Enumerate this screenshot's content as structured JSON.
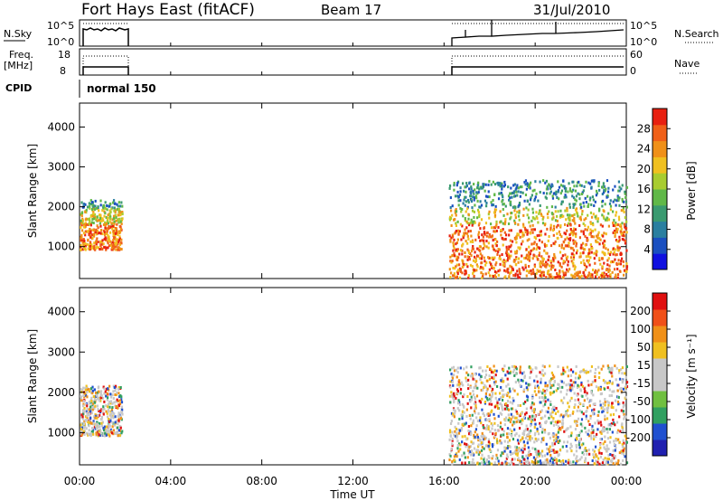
{
  "header": {
    "station": "Fort Hays East (fitACF)",
    "beam": "Beam 17",
    "date": "31/Jul/2010"
  },
  "strips": {
    "nsky_label": "N.Sky",
    "nsky_ticks": [
      "10^5",
      "10^0"
    ],
    "nsearch_label": "N.Search",
    "nsearch_ticks": [
      "10^5",
      "10^0"
    ],
    "freq_label": "Freq.",
    "freq_unit": "[MHz]",
    "freq_ticks": [
      "18",
      "8"
    ],
    "nave_label": "Nave",
    "nave_ticks": [
      "60",
      "0"
    ],
    "cpid_label": "CPID",
    "cpid_value": "normal 150"
  },
  "colors": {
    "power": [
      "#1010e0",
      "#1a4fc0",
      "#2a7fa0",
      "#3a9a70",
      "#60b848",
      "#a8cc30",
      "#f0c020",
      "#f09018",
      "#f06018",
      "#e82010"
    ],
    "velocity": [
      "#2020b0",
      "#2050d0",
      "#30a060",
      "#70c040",
      "#c8c8c8",
      "#c8c8c8",
      "#f0c020",
      "#f09018",
      "#f05018",
      "#e01010"
    ]
  },
  "chart_data": [
    {
      "type": "heatmap",
      "name": "power-panel",
      "ylabel": "Slant Range [km]",
      "yticks": [
        "4000",
        "3000",
        "2000",
        "1000"
      ],
      "ylim": [
        200,
        4600
      ],
      "xlim_hours": [
        0,
        24
      ],
      "colorbar_label": "Power [dB]",
      "colorbar_ticks": [
        "28",
        "24",
        "20",
        "16",
        "12",
        "8",
        "4"
      ],
      "colorbar_range": [
        0,
        32
      ],
      "regions": [
        {
          "t0": 0.0,
          "t1": 1.85,
          "r0": 950,
          "r1": 2200,
          "scatter": "dense"
        },
        {
          "t0": 16.2,
          "t1": 24.0,
          "r0": 250,
          "r1": 2700,
          "scatter": "dense"
        }
      ]
    },
    {
      "type": "heatmap",
      "name": "velocity-panel",
      "ylabel": "Slant Range [km]",
      "yticks": [
        "4000",
        "3000",
        "2000",
        "1000"
      ],
      "ylim": [
        200,
        4600
      ],
      "xlim_hours": [
        0,
        24
      ],
      "colorbar_label": "Velocity [m s⁻¹]",
      "colorbar_ticks": [
        "200",
        "100",
        "50",
        "15",
        "-15",
        "-50",
        "-100",
        "-200"
      ],
      "colorbar_range": [
        -250,
        250
      ],
      "regions": [
        {
          "t0": 0.0,
          "t1": 1.85,
          "r0": 950,
          "r1": 2200,
          "scatter": "dense"
        },
        {
          "t0": 16.2,
          "t1": 24.0,
          "r0": 250,
          "r1": 2700,
          "scatter": "dense"
        }
      ]
    }
  ],
  "xaxis": {
    "ticks": [
      "00:00",
      "04:00",
      "08:00",
      "12:00",
      "16:00",
      "20:00",
      "00:00"
    ],
    "label": "Time UT"
  }
}
